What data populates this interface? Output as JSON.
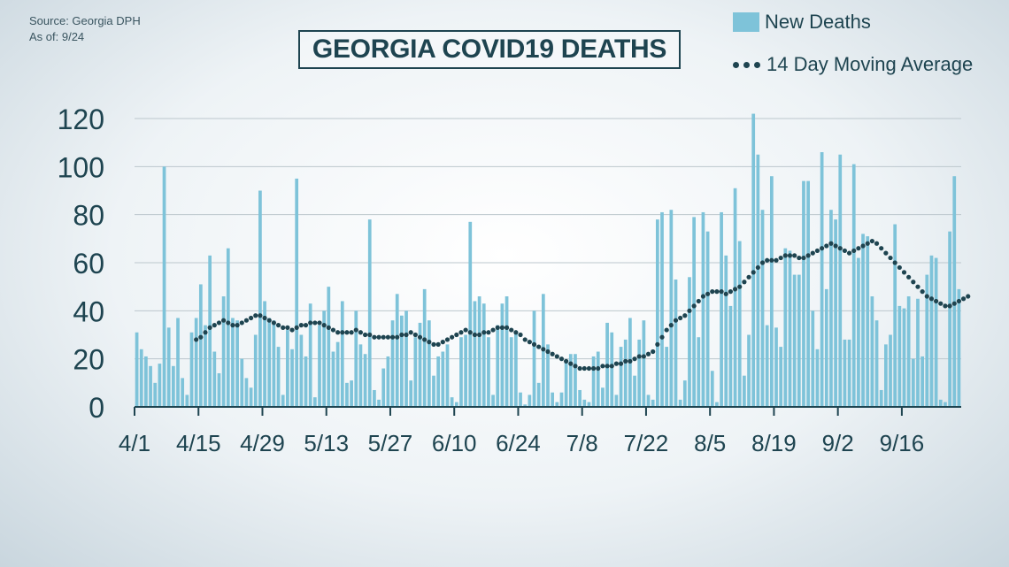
{
  "source_lines": [
    "Source: Georgia DPH",
    "As of: 9/24"
  ],
  "chart_data": {
    "type": "bar",
    "title": "GEORGIA COVID19 DEATHS",
    "xlabel": "",
    "ylabel": "",
    "ylim": [
      0,
      122
    ],
    "yticks": [
      0,
      20,
      40,
      60,
      80,
      100,
      120
    ],
    "xtick_labels": [
      "4/1",
      "4/15",
      "4/29",
      "5/13",
      "5/27",
      "6/10",
      "6/24",
      "7/8",
      "7/22",
      "8/5",
      "8/19",
      "9/2",
      "9/16"
    ],
    "grid": true,
    "legend": "top-right",
    "colors": {
      "bars": "#7ec3d9",
      "average": "#1e4450",
      "text": "#1e4450",
      "grid": "#bcc7cd"
    },
    "series": [
      {
        "name": "New Deaths",
        "kind": "bar",
        "values": [
          31,
          24,
          21,
          17,
          10,
          18,
          100,
          33,
          17,
          37,
          12,
          5,
          31,
          37,
          51,
          34,
          63,
          23,
          14,
          46,
          66,
          37,
          36,
          20,
          12,
          8,
          30,
          90,
          44,
          37,
          36,
          25,
          5,
          32,
          24,
          95,
          30,
          21,
          43,
          4,
          34,
          40,
          50,
          23,
          27,
          44,
          10,
          11,
          40,
          26,
          22,
          78,
          7,
          3,
          16,
          21,
          36,
          47,
          38,
          40,
          11,
          29,
          35,
          49,
          36,
          13,
          21,
          23,
          26,
          4,
          2,
          29,
          30,
          77,
          44,
          46,
          43,
          29,
          5,
          34,
          43,
          46,
          29,
          31,
          6,
          1,
          5,
          40,
          10,
          47,
          26,
          6,
          2,
          6,
          19,
          22,
          22,
          7,
          3,
          2,
          21,
          23,
          8,
          35,
          31,
          5,
          25,
          28,
          37,
          13,
          28,
          36,
          5,
          3,
          78,
          81,
          25,
          82,
          53,
          3,
          11,
          54,
          79,
          29,
          81,
          73,
          15,
          2,
          81,
          63,
          42,
          91,
          69,
          13,
          30,
          122,
          105,
          82,
          34,
          96,
          33,
          25,
          66,
          65,
          55,
          55,
          94,
          94,
          40,
          24,
          106,
          49,
          82,
          78,
          105,
          28,
          28,
          101,
          62,
          72,
          71,
          46,
          36,
          7,
          26,
          30,
          76,
          42,
          41,
          46,
          20,
          45,
          21,
          55,
          63,
          62,
          3,
          2,
          73,
          96,
          49
        ]
      },
      {
        "name": "14 Day Moving Average",
        "kind": "line",
        "values": [
          null,
          null,
          null,
          null,
          null,
          null,
          null,
          null,
          null,
          null,
          null,
          null,
          null,
          28,
          29,
          31,
          33,
          34,
          35,
          36,
          35,
          34,
          34,
          35,
          36,
          37,
          38,
          38,
          37,
          36,
          35,
          34,
          33,
          33,
          32,
          33,
          34,
          34,
          35,
          35,
          35,
          34,
          33,
          32,
          31,
          31,
          31,
          31,
          32,
          31,
          30,
          30,
          29,
          29,
          29,
          29,
          29,
          29,
          30,
          30,
          31,
          30,
          29,
          28,
          27,
          26,
          26,
          27,
          28,
          29,
          30,
          31,
          32,
          31,
          30,
          30,
          31,
          31,
          32,
          33,
          33,
          33,
          32,
          31,
          30,
          28,
          27,
          26,
          25,
          24,
          23,
          22,
          21,
          20,
          19,
          18,
          17,
          16,
          16,
          16,
          16,
          16,
          17,
          17,
          17,
          18,
          18,
          19,
          19,
          20,
          21,
          21,
          22,
          23,
          26,
          29,
          32,
          34,
          36,
          37,
          38,
          40,
          42,
          44,
          46,
          47,
          48,
          48,
          48,
          47,
          48,
          49,
          50,
          52,
          54,
          56,
          58,
          60,
          61,
          61,
          61,
          62,
          63,
          63,
          63,
          62,
          62,
          63,
          64,
          65,
          66,
          67,
          68,
          67,
          66,
          65,
          64,
          65,
          66,
          67,
          68,
          69,
          68,
          66,
          64,
          62,
          60,
          58,
          56,
          54,
          52,
          50,
          48,
          46,
          45,
          44,
          43,
          42,
          42,
          43,
          44,
          45,
          46
        ]
      }
    ]
  }
}
